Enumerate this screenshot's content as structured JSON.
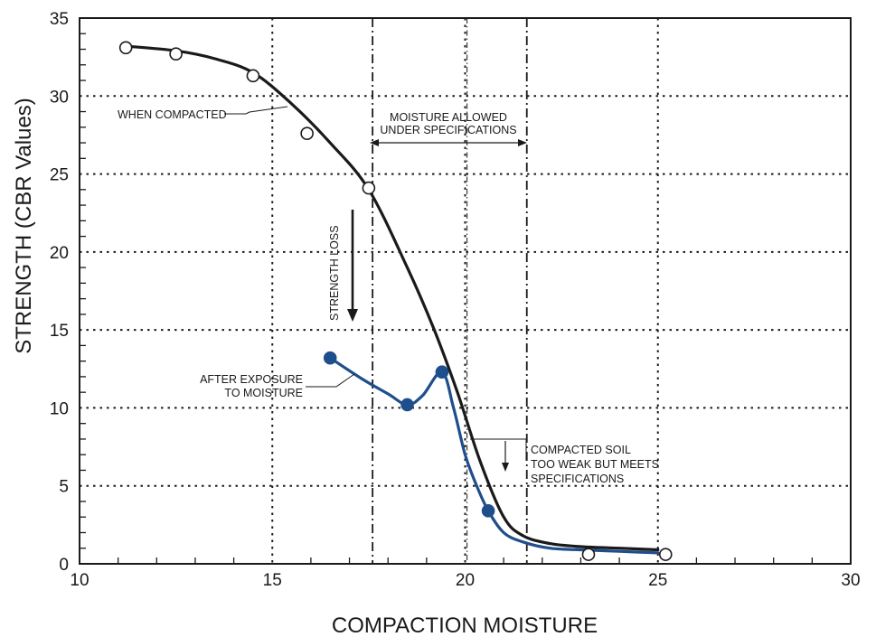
{
  "chart_data": {
    "type": "line",
    "xlabel": "COMPACTION MOISTURE",
    "ylabel": "STRENGTH (CBR Values)",
    "xlim": [
      10,
      30
    ],
    "ylim": [
      0,
      35
    ],
    "x_ticks": [
      "10",
      "15",
      "20",
      "25",
      "30"
    ],
    "y_ticks": [
      "0",
      "5",
      "10",
      "15",
      "20",
      "25",
      "30",
      "35"
    ],
    "grid": "dotted",
    "series": [
      {
        "name": "WHEN COMPACTED",
        "color": "#1a1a1a",
        "marker": "open-circle",
        "points": [
          [
            11.2,
            33.1
          ],
          [
            12.5,
            32.7
          ],
          [
            14.5,
            31.3
          ],
          [
            15.9,
            27.6
          ],
          [
            17.5,
            24.1
          ],
          [
            23.2,
            0.6
          ],
          [
            25.2,
            0.6
          ]
        ],
        "curve": [
          [
            11.2,
            33.2
          ],
          [
            12.5,
            32.9
          ],
          [
            13.5,
            32.4
          ],
          [
            14.5,
            31.5
          ],
          [
            15.5,
            29.5
          ],
          [
            16.5,
            27.0
          ],
          [
            17.5,
            24.0
          ],
          [
            18.5,
            19.0
          ],
          [
            19.2,
            15.0
          ],
          [
            19.8,
            11.0
          ],
          [
            20.4,
            6.5
          ],
          [
            21.0,
            3.0
          ],
          [
            21.5,
            1.8
          ],
          [
            22.2,
            1.3
          ],
          [
            23.0,
            1.1
          ],
          [
            24.0,
            1.0
          ],
          [
            25.0,
            0.9
          ]
        ]
      },
      {
        "name": "AFTER EXPOSURE TO MOISTURE",
        "color": "#1f4e8c",
        "marker": "filled-circle",
        "points": [
          [
            16.5,
            13.2
          ],
          [
            18.5,
            10.2
          ],
          [
            19.4,
            12.3
          ],
          [
            20.6,
            3.4
          ]
        ],
        "curve": [
          [
            16.5,
            13.2
          ],
          [
            17.3,
            11.9
          ],
          [
            18.0,
            10.9
          ],
          [
            18.5,
            10.2
          ],
          [
            18.9,
            10.8
          ],
          [
            19.4,
            12.3
          ],
          [
            19.7,
            10.0
          ],
          [
            20.0,
            7.0
          ],
          [
            20.3,
            5.0
          ],
          [
            20.6,
            3.4
          ],
          [
            21.0,
            2.0
          ],
          [
            21.5,
            1.4
          ],
          [
            22.2,
            1.0
          ],
          [
            23.0,
            0.9
          ],
          [
            24.0,
            0.8
          ],
          [
            25.0,
            0.7
          ]
        ]
      }
    ],
    "spec_limits": [
      17.6,
      21.6
    ],
    "annotations": {
      "when_compacted": "WHEN COMPACTED",
      "moisture_allowed_1": "MOISTURE ALLOWED",
      "moisture_allowed_2": "UNDER SPECIFICATIONS",
      "strength_loss": "STRENGTH LOSS",
      "after_exposure_1": "AFTER EXPOSURE",
      "after_exposure_2": "TO MOISTURE",
      "compacted_soil_1": "COMPACTED SOIL",
      "compacted_soil_2": "TOO WEAK BUT MEETS",
      "compacted_soil_3": "SPECIFICATIONS"
    }
  }
}
